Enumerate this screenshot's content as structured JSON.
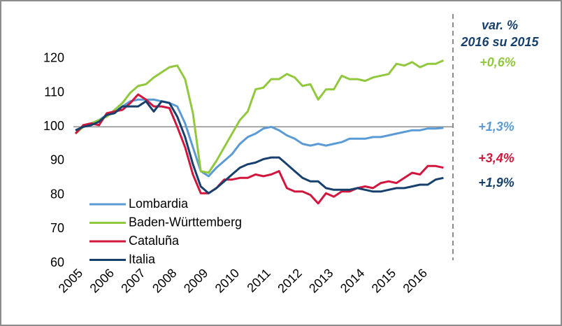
{
  "chart_data": {
    "type": "line",
    "categories": [
      "2005",
      null,
      null,
      null,
      "2006",
      null,
      null,
      null,
      "2007",
      null,
      null,
      null,
      "2008",
      null,
      null,
      null,
      "2009",
      null,
      null,
      null,
      "2010",
      null,
      null,
      null,
      "2011",
      null,
      null,
      null,
      "2012",
      null,
      null,
      null,
      "2013",
      null,
      null,
      null,
      "2014",
      null,
      null,
      null,
      "2015",
      null,
      null,
      null,
      "2016",
      null,
      null,
      null
    ],
    "series": [
      {
        "name": "Lombardia",
        "color": "#5b9bd5",
        "values": [
          99,
          100,
          101,
          102,
          103.5,
          104.5,
          106,
          107.5,
          108,
          108,
          108,
          107.5,
          107,
          106,
          101,
          94,
          87,
          85.5,
          88,
          90,
          92,
          95,
          97,
          98,
          99.5,
          100,
          99,
          97.5,
          96.5,
          95,
          94.5,
          95,
          94.5,
          95,
          95.5,
          96.5,
          96.5,
          96.5,
          97,
          97,
          97.5,
          98,
          98.5,
          99,
          99,
          99.5,
          99.5,
          99.7
        ]
      },
      {
        "name": "Baden-Württemberg",
        "color": "#92c83e",
        "values": [
          98,
          100,
          101,
          102,
          103,
          105,
          107,
          110,
          112,
          112.5,
          114.5,
          116,
          117.5,
          118,
          114,
          104,
          87,
          86.5,
          90,
          94,
          98,
          102,
          104.5,
          111,
          111.5,
          114,
          114,
          115.5,
          114.5,
          112,
          112.5,
          108,
          111,
          111,
          115,
          114,
          114,
          113.5,
          114.5,
          115,
          115.5,
          118.5,
          118,
          119,
          117.5,
          118.5,
          118.5,
          119.5
        ]
      },
      {
        "name": "Cataluña",
        "color": "#d2173f",
        "values": [
          98,
          100.5,
          101,
          100.5,
          104,
          104.5,
          105,
          107,
          109.5,
          108,
          106,
          106,
          105.5,
          100,
          94,
          86,
          80.5,
          80.5,
          82,
          84.5,
          84.5,
          85,
          85,
          86,
          85.5,
          86,
          87,
          82,
          81,
          81,
          80,
          77.5,
          80.5,
          79.5,
          81,
          81,
          82,
          82.5,
          82,
          83.5,
          84,
          83.5,
          85,
          86.5,
          86,
          88.5,
          88.5,
          88
        ]
      },
      {
        "name": "Italia",
        "color": "#17406d",
        "values": [
          99,
          100,
          100.5,
          101.5,
          103.5,
          104,
          106,
          106,
          106,
          107.5,
          104.5,
          107.5,
          107,
          103,
          97,
          89,
          82.5,
          80.5,
          82,
          84,
          86,
          88,
          89,
          89.5,
          90.5,
          91,
          91,
          89,
          87,
          85,
          84,
          84,
          82,
          81.5,
          81.5,
          81.5,
          82,
          81.5,
          81,
          81,
          81.5,
          82,
          82,
          82.5,
          83,
          83,
          84.5,
          85
        ]
      }
    ],
    "reference_line": 100,
    "ylim": [
      60,
      125
    ],
    "yticks": [
      60,
      70,
      80,
      90,
      100,
      110,
      120
    ],
    "annotations": [
      {
        "text": "var. %",
        "color": "#17406d"
      },
      {
        "text": "2016 su 2015",
        "color": "#17406d"
      },
      {
        "text": "+0,6%",
        "color": "#92c83e"
      },
      {
        "text": "+1,3%",
        "color": "#5b9bd5"
      },
      {
        "text": "+3,4%",
        "color": "#d2173f"
      },
      {
        "text": "+1,9%",
        "color": "#17406d"
      }
    ]
  }
}
